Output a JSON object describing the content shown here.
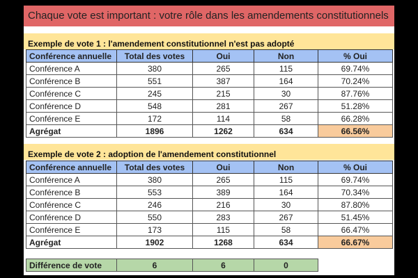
{
  "title": "Chaque vote est important : votre rôle dans les amendements constitutionnels",
  "columns": [
    "Conférence annuelle",
    "Total des votes",
    "Oui",
    "Non",
    "% Oui"
  ],
  "example1": {
    "heading": "Exemple de vote 1 : l'amendement constitutionnel n'est pas adopté",
    "rows": [
      [
        "Conférence A",
        "380",
        "265",
        "115",
        "69.74%"
      ],
      [
        "Conférence B",
        "551",
        "387",
        "164",
        "70.24%"
      ],
      [
        "Conférence C",
        "245",
        "215",
        "30",
        "87.76%"
      ],
      [
        "Conférence D",
        "548",
        "281",
        "267",
        "51.28%"
      ],
      [
        "Conférence E",
        "172",
        "114",
        "58",
        "66.28%"
      ]
    ],
    "aggregate": [
      "Agrégat",
      "1896",
      "1262",
      "634",
      "66.56%"
    ]
  },
  "example2": {
    "heading": "Exemple de vote 2 : adoption de l'amendement constitutionnel",
    "rows": [
      [
        "Conférence A",
        "380",
        "265",
        "115",
        "69.74%"
      ],
      [
        "Conférence B",
        "553",
        "389",
        "164",
        "70.34%"
      ],
      [
        "Conférence C",
        "246",
        "216",
        "30",
        "87.80%"
      ],
      [
        "Conférence D",
        "550",
        "283",
        "267",
        "51.45%"
      ],
      [
        "Conférence E",
        "173",
        "115",
        "58",
        "66.47%"
      ]
    ],
    "aggregate": [
      "Agrégat",
      "1902",
      "1268",
      "634",
      "66.67%"
    ]
  },
  "difference": [
    "Différence de vote",
    "6",
    "6",
    "0"
  ],
  "colors": {
    "title": "#e06666",
    "section": "#ffe599",
    "header": "#a4c2f4",
    "aggregate_pct": "#f9cb9c",
    "difference": "#b6d7a8"
  }
}
